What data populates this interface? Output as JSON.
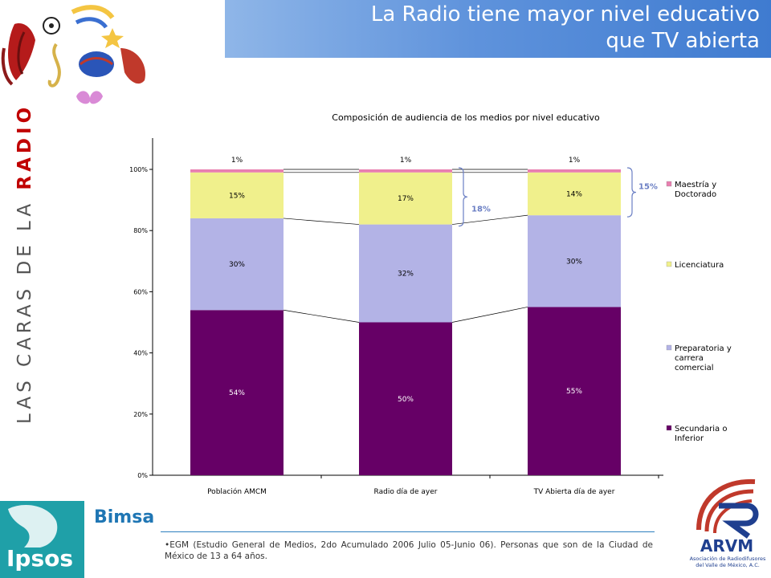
{
  "header": {
    "title_line1": "La Radio tiene mayor nivel educativo",
    "title_line2": "que TV abierta"
  },
  "brand": {
    "side_text_light": "LAS CARAS DE LA ",
    "side_text_bold": "RADIO",
    "ipsos": "Ipsos",
    "bimsa": "Bimsa",
    "arvm": "ARVM",
    "arvm_sub": "Asociación de Radiodifusores del Valle de México, A.C."
  },
  "footnote": "•EGM (Estudio General de Medios, 2do Acumulado 2006 Julio 05-Junio 06). Personas que son de la Ciudad de México de 13 a 64 años.",
  "colors": {
    "title_bar": "#5f93dc",
    "secundaria": "#660066",
    "preparatoria": "#b3b3e6",
    "licenciatura": "#f0f08c",
    "maestria": "#e87fb0",
    "bracket": "#6b7fc4"
  },
  "chart_data": {
    "type": "bar",
    "stacked": true,
    "title": "Composición de audiencia de los medios por nivel educativo",
    "categories": [
      "Población AMCM",
      "Radio día de ayer",
      "TV Abierta día de ayer"
    ],
    "series": [
      {
        "name": "Secundaria o Inferior",
        "values": [
          54,
          50,
          55
        ],
        "labels": [
          "54%",
          "50%",
          "55%"
        ],
        "color": "#660066"
      },
      {
        "name": "Preparatoria y carrera comercial",
        "values": [
          30,
          32,
          30
        ],
        "labels": [
          "30%",
          "32%",
          "30%"
        ],
        "color": "#b3b3e6"
      },
      {
        "name": "Licenciatura",
        "values": [
          15,
          17,
          14
        ],
        "labels": [
          "15%",
          "17%",
          "14%"
        ],
        "color": "#f0f08c"
      },
      {
        "name": "Maestría y Doctorado",
        "values": [
          1,
          1,
          1
        ],
        "labels": [
          "1%",
          "1%",
          "1%"
        ],
        "color": "#e87fb0"
      }
    ],
    "legend": [
      {
        "line1": "Maestría y",
        "line2": "Doctorado"
      },
      {
        "line1": "Licenciatura"
      },
      {
        "line1": "Preparatoria y",
        "line2": "carrera",
        "line3": "comercial"
      },
      {
        "line1": "Secundaria o",
        "line2": "Inferior"
      }
    ],
    "brackets": [
      {
        "label": "18%",
        "category": "Radio día de ayer"
      },
      {
        "label": "15%",
        "category": "TV Abierta día de ayer"
      }
    ],
    "ylim": [
      0,
      100
    ],
    "yticks": [
      0,
      20,
      40,
      60,
      80,
      100
    ],
    "ytick_labels": [
      "0%",
      "20%",
      "40%",
      "60%",
      "80%",
      "100%"
    ],
    "legend_position": "right",
    "grid": false
  }
}
